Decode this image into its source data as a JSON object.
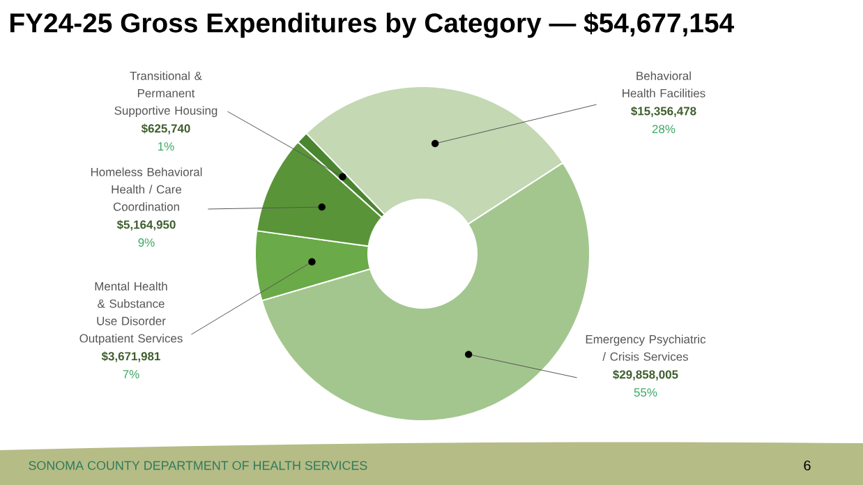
{
  "chart_data": {
    "type": "donut",
    "title": "FY24-25 Gross Expenditures by Category — $54,677,154",
    "categories": [
      "Behavioral Health Facilities",
      "Emergency Psychiatric / Crisis Services",
      "Mental Health & Substance Use Disorder Outpatient Services",
      "Homeless Behavioral Health / Care Coordination",
      "Transitional & Permanent Supportive Housing"
    ],
    "values": [
      15356478,
      29858005,
      3671981,
      5164950,
      625740
    ],
    "colors": [
      "#c3d8b3",
      "#a3c68e",
      "#6aaa48",
      "#5a9438",
      "#4a8530"
    ],
    "value_labels": [
      "$15,356,478",
      "$29,858,005",
      "$3,671,981",
      "$5,164,950",
      "$625,740"
    ],
    "annotations": [
      "28%",
      "55%",
      "7%",
      "9%",
      "1%",
      "SONOMA COUNTY DEPARTMENT OF HEALTH SERVICES",
      "6"
    ]
  }
}
